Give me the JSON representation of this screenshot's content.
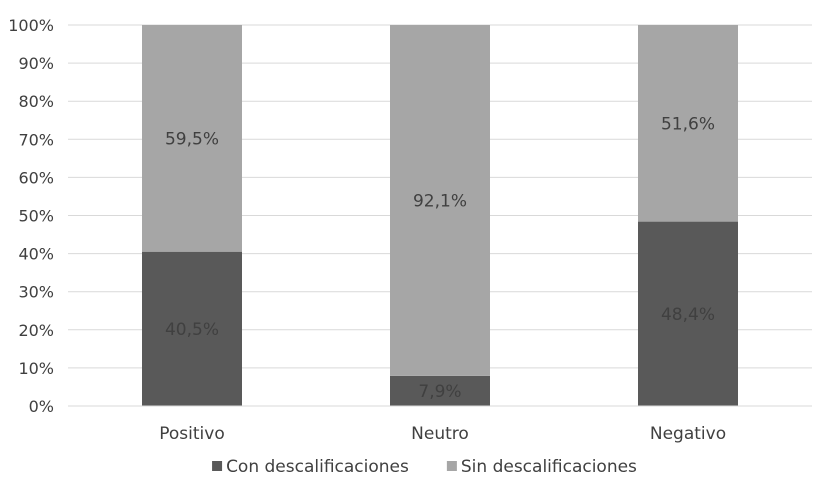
{
  "chart_data": {
    "type": "bar",
    "stacked": true,
    "percent": true,
    "categories": [
      "Positivo",
      "Neutro",
      "Negativo"
    ],
    "series": [
      {
        "name": "Con descalificaciones",
        "values": [
          40.5,
          7.9,
          48.4
        ],
        "labels": [
          "40,5%",
          "7,9%",
          "48,4%"
        ],
        "color": "#595959",
        "label_color": "#404040"
      },
      {
        "name": "Sin descalificaciones",
        "values": [
          59.5,
          92.1,
          51.6
        ],
        "labels": [
          "59,5%",
          "92,1%",
          "51,6%"
        ],
        "color": "#a6a6a6",
        "label_color": "#404040"
      }
    ],
    "yticks": [
      "0%",
      "10%",
      "20%",
      "30%",
      "40%",
      "50%",
      "60%",
      "70%",
      "80%",
      "90%",
      "100%"
    ],
    "ylim": [
      0,
      100
    ],
    "grid": true,
    "gridline_color": "#d9d9d9",
    "legend_position": "bottom",
    "title": "",
    "xlabel": "",
    "ylabel": ""
  }
}
